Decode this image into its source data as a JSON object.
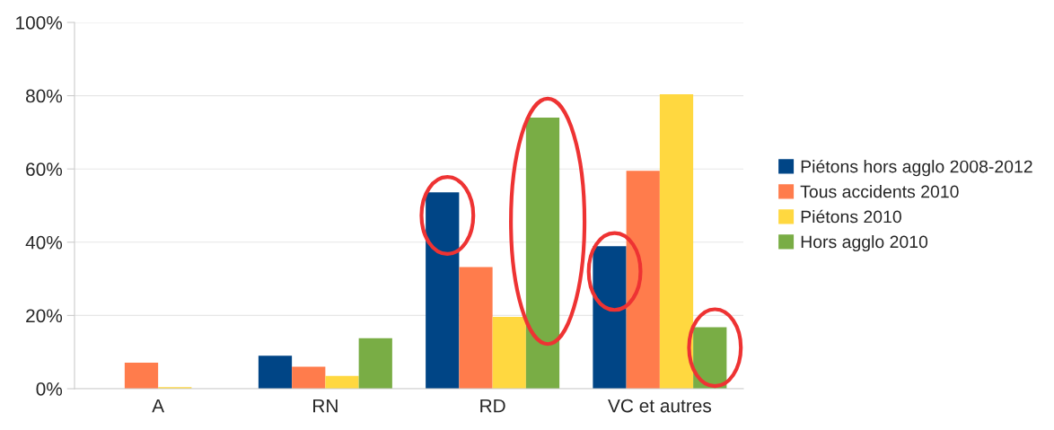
{
  "chart_data": {
    "type": "bar",
    "categories": [
      "A",
      "RN",
      "RD",
      "VC et autres"
    ],
    "series": [
      {
        "name": "Piétons hors agglo 2008-2012",
        "color": "#004586",
        "values": [
          null,
          9.0,
          53.6,
          38.9
        ]
      },
      {
        "name": "Tous accidents 2010",
        "color": "#ff7c4c",
        "values": [
          7.1,
          6.0,
          33.2,
          59.5
        ]
      },
      {
        "name": "Piétons 2010",
        "color": "#ffd840",
        "values": [
          0.4,
          3.5,
          19.6,
          80.4
        ]
      },
      {
        "name": "Hors agglo 2010",
        "color": "#79ad45",
        "values": [
          null,
          13.8,
          74.0,
          16.8
        ]
      }
    ],
    "ylim": [
      0,
      100
    ],
    "yticks": [
      {
        "value": 0,
        "label": "0%"
      },
      {
        "value": 20,
        "label": "20%"
      },
      {
        "value": 40,
        "label": "40%"
      },
      {
        "value": 60,
        "label": "60%"
      },
      {
        "value": 80,
        "label": "80%"
      },
      {
        "value": 100,
        "label": "100%"
      }
    ],
    "grid": "y",
    "legend": "right"
  }
}
